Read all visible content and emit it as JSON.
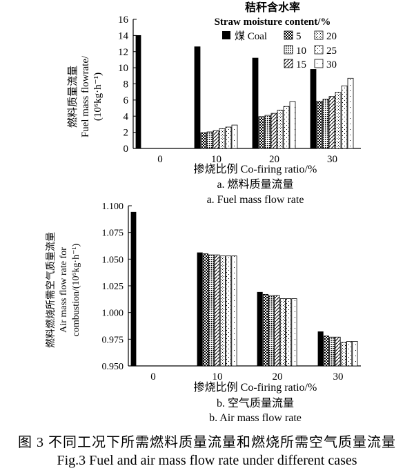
{
  "caption": {
    "cn": "图 3   不同工况下所需燃料质量流量和燃烧所需空气质量流量",
    "en": "Fig.3   Fuel and air mass flow rate under different cases"
  },
  "legend": {
    "title_cn": "秸秆含水率",
    "title_en": "Straw moisture content/%",
    "coal_label": "煤 Coal",
    "entries": [
      "5",
      "10",
      "15",
      "20",
      "25",
      "30"
    ]
  },
  "chart_data": [
    {
      "type": "bar",
      "subtitle_cn": "a. 燃料质量流量",
      "subtitle_en": "a. Fuel mass flow rate",
      "xlabel": "掺烧比例 Co-firing ratio/%",
      "ylabel_lines": [
        "燃料质量流量",
        "Fuel mass flowrate/",
        "(10⁶kg·h⁻¹)"
      ],
      "categories": [
        "0",
        "10",
        "20",
        "30"
      ],
      "ylim": [
        0,
        16
      ],
      "yticks": [
        "0",
        "2",
        "4",
        "6",
        "8",
        "10",
        "12",
        "14",
        "16"
      ],
      "series": [
        {
          "name": "煤 Coal",
          "values": [
            14.0,
            12.6,
            11.2,
            9.8
          ]
        },
        {
          "name": "5",
          "values": [
            null,
            1.95,
            3.95,
            5.85
          ]
        },
        {
          "name": "10",
          "values": [
            null,
            2.05,
            4.1,
            6.1
          ]
        },
        {
          "name": "15",
          "values": [
            null,
            2.2,
            4.35,
            6.45
          ]
        },
        {
          "name": "20",
          "values": [
            null,
            2.45,
            4.75,
            6.95
          ]
        },
        {
          "name": "25",
          "values": [
            null,
            2.65,
            5.2,
            7.75
          ]
        },
        {
          "name": "30",
          "values": [
            null,
            2.9,
            5.8,
            8.7
          ]
        }
      ]
    },
    {
      "type": "bar",
      "subtitle_cn": "b. 空气质量流量",
      "subtitle_en": "b. Air mass flow rate",
      "xlabel": "掺烧比例 Co-firing ratio/%",
      "ylabel_lines": [
        "燃料燃烧所需空气质量流量",
        "Air mass flow rate for",
        "combustion/(10⁶kg·h⁻¹)"
      ],
      "categories": [
        "0",
        "10",
        "20",
        "30"
      ],
      "ylim": [
        0.95,
        1.1
      ],
      "yticks": [
        "0.950",
        "0.975",
        "1.000",
        "1.025",
        "1.050",
        "1.075",
        "1.100"
      ],
      "series": [
        {
          "name": "煤 Coal",
          "values": [
            1.094,
            1.056,
            1.019,
            0.982
          ]
        },
        {
          "name": "5",
          "values": [
            null,
            1.055,
            1.017,
            0.978
          ]
        },
        {
          "name": "10",
          "values": [
            null,
            1.054,
            1.016,
            0.977
          ]
        },
        {
          "name": "15",
          "values": [
            null,
            1.054,
            1.016,
            0.977
          ]
        },
        {
          "name": "20",
          "values": [
            null,
            1.053,
            1.013,
            0.972
          ]
        },
        {
          "name": "25",
          "values": [
            null,
            1.053,
            1.013,
            0.973
          ]
        },
        {
          "name": "30",
          "values": [
            null,
            1.053,
            1.013,
            0.973
          ]
        }
      ]
    }
  ]
}
